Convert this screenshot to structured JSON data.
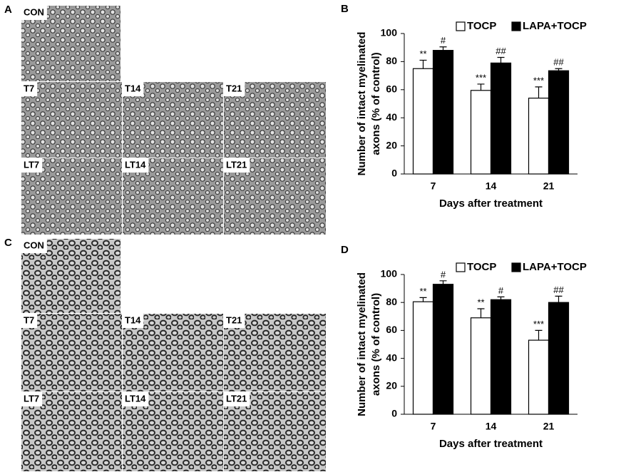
{
  "panels": [
    {
      "panel_label": "A",
      "images": [
        "CON",
        "T7",
        "T14",
        "T21",
        "LT7",
        "LT14",
        "LT21"
      ]
    },
    {
      "panel_label": "C",
      "images": [
        "CON",
        "T7",
        "T14",
        "T21",
        "LT7",
        "LT14",
        "LT21"
      ]
    }
  ],
  "chart_data": [
    {
      "type": "bar",
      "panel_label": "B",
      "categories": [
        "7",
        "14",
        "21"
      ],
      "series": [
        {
          "name": "TOCP",
          "color": "#ffffff",
          "values": [
            75,
            59.5,
            54
          ],
          "errors": [
            6,
            4.5,
            8
          ],
          "annotations": [
            "**",
            "***",
            "***"
          ]
        },
        {
          "name": "LAPA+TOCP",
          "color": "#000000",
          "values": [
            88,
            79,
            73.5
          ],
          "errors": [
            2.5,
            4,
            1.5
          ],
          "annotations": [
            "#",
            "##",
            "##"
          ]
        }
      ],
      "ylim": [
        0,
        100
      ],
      "yticks": [
        0,
        20,
        40,
        60,
        80,
        100
      ],
      "ylabel": [
        "Number of intact myelinated",
        "axons (% of control)"
      ],
      "xlabel": "Days after treatment",
      "grid": false
    },
    {
      "type": "bar",
      "panel_label": "D",
      "categories": [
        "7",
        "14",
        "21"
      ],
      "series": [
        {
          "name": "TOCP",
          "color": "#ffffff",
          "values": [
            80.5,
            69,
            53
          ],
          "errors": [
            3,
            6.5,
            7
          ],
          "annotations": [
            "**",
            "**",
            "***"
          ]
        },
        {
          "name": "LAPA+TOCP",
          "color": "#000000",
          "values": [
            93,
            82,
            80
          ],
          "errors": [
            2.5,
            2,
            4.5
          ],
          "annotations": [
            "#",
            "#",
            "##"
          ]
        }
      ],
      "ylim": [
        0,
        100
      ],
      "yticks": [
        0,
        20,
        40,
        60,
        80,
        100
      ],
      "ylabel": [
        "Number of intact myelinated",
        "axons (% of control)"
      ],
      "xlabel": "Days after treatment",
      "grid": false
    }
  ]
}
